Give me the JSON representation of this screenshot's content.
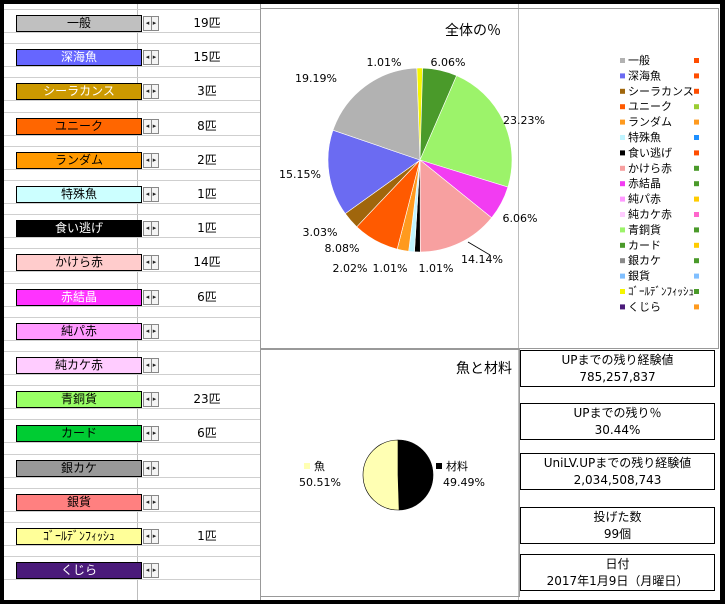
{
  "items": [
    {
      "name": "一般",
      "count": "19匹",
      "bg": "#c0c0c0",
      "fg": "#000000"
    },
    {
      "name": "深海魚",
      "count": "15匹",
      "bg": "#6666ff",
      "fg": "#ffffff"
    },
    {
      "name": "シーラカンス",
      "count": "3匹",
      "bg": "#cc9900",
      "fg": "#ffffff"
    },
    {
      "name": "ユニーク",
      "count": "8匹",
      "bg": "#ff6600",
      "fg": "#000000"
    },
    {
      "name": "ランダム",
      "count": "2匹",
      "bg": "#ff9900",
      "fg": "#000000"
    },
    {
      "name": "特殊魚",
      "count": "1匹",
      "bg": "#ccffff",
      "fg": "#000000"
    },
    {
      "name": "食い逃げ",
      "count": "1匹",
      "bg": "#000000",
      "fg": "#ffffff"
    },
    {
      "name": "かけら赤",
      "count": "14匹",
      "bg": "#ffcccc",
      "fg": "#000000"
    },
    {
      "name": "赤結晶",
      "count": "6匹",
      "bg": "#ff33ff",
      "fg": "#ffffff"
    },
    {
      "name": "純パ赤",
      "count": "",
      "bg": "#ff99ff",
      "fg": "#000000"
    },
    {
      "name": "純カケ赤",
      "count": "",
      "bg": "#ffccff",
      "fg": "#000000"
    },
    {
      "name": "青銅貨",
      "count": "23匹",
      "bg": "#99ff66",
      "fg": "#000000"
    },
    {
      "name": "カード",
      "count": "6匹",
      "bg": "#00cc33",
      "fg": "#000000"
    },
    {
      "name": "銀カケ",
      "count": "",
      "bg": "#999999",
      "fg": "#000000"
    },
    {
      "name": "銀貨",
      "count": "",
      "bg": "#ff8080",
      "fg": "#000000"
    },
    {
      "name": "ｺﾞｰﾙﾃﾞﾝﾌｨｯｼｭ",
      "count": "1匹",
      "bg": "#ffff99",
      "fg": "#000000"
    },
    {
      "name": "くじら",
      "count": "",
      "bg": "#4a1a7a",
      "fg": "#ffffff"
    }
  ],
  "chart_data": [
    {
      "type": "pie",
      "title": "全体の％",
      "slices": [
        {
          "label": "一般",
          "value": 19.19,
          "pct": "19.19%",
          "color": "#b2b2b2"
        },
        {
          "label": "深海魚",
          "value": 15.15,
          "pct": "15.15%",
          "color": "#6b6bf2"
        },
        {
          "label": "シーラカンス",
          "value": 3.03,
          "pct": "3.03%",
          "color": "#a0660c"
        },
        {
          "label": "ユニーク",
          "value": 8.08,
          "pct": "8.08%",
          "color": "#ff5a00"
        },
        {
          "label": "ランダム",
          "value": 2.02,
          "pct": "2.02%",
          "color": "#ff9a1e"
        },
        {
          "label": "特殊魚",
          "value": 1.01,
          "pct": "1.01%",
          "color": "#bff4ff"
        },
        {
          "label": "食い逃げ",
          "value": 1.01,
          "pct": "1.01%",
          "color": "#000000"
        },
        {
          "label": "かけら赤",
          "value": 14.14,
          "pct": "14.14%",
          "color": "#f7a0a0"
        },
        {
          "label": "赤結晶",
          "value": 6.06,
          "pct": "6.06%",
          "color": "#f23cf2"
        },
        {
          "label": "純パ赤",
          "value": 0,
          "pct": "",
          "color": "#ff99ff"
        },
        {
          "label": "純カケ赤",
          "value": 0,
          "pct": "",
          "color": "#ffccff"
        },
        {
          "label": "青銅貨",
          "value": 23.23,
          "pct": "23.23%",
          "color": "#9cf36a"
        },
        {
          "label": "カード",
          "value": 6.06,
          "pct": "6.06%",
          "color": "#4a9a2a"
        },
        {
          "label": "銀カケ",
          "value": 0,
          "pct": "",
          "color": "#8a8a8a"
        },
        {
          "label": "銀貨",
          "value": 0,
          "pct": "",
          "color": "#80bfff"
        },
        {
          "label": "ｺﾞｰﾙﾃﾞﾝﾌｨｯｼｭ",
          "value": 1.01,
          "pct": "1.01%",
          "color": "#f5f500"
        },
        {
          "label": "くじら",
          "value": 0,
          "pct": "",
          "color": "#4a1a7a"
        }
      ],
      "legend_markers": [
        "#ff4d00",
        "#ff4d00",
        "#ff4d00",
        "#9acd32",
        "#ff9a1e",
        "#1e90ff",
        "#ff4d00",
        "#4a9a2a",
        "#4a9a2a",
        "#ffcc00",
        "#ff66cc",
        "#4a9a2a",
        "#ffcc00",
        "#4a9a2a",
        "#80bfff",
        "#4a9a2a",
        "#ff9a1e"
      ],
      "legend_placement": "right"
    },
    {
      "type": "pie",
      "title": "魚と材料",
      "slices": [
        {
          "label": "魚",
          "value": 50.51,
          "pct": "50.51%",
          "color": "#ffffb3"
        },
        {
          "label": "材料",
          "value": 49.49,
          "pct": "49.49%",
          "color": "#000000"
        }
      ],
      "legend_placement": "inline"
    }
  ],
  "stats": [
    {
      "label": "UPまでの残り経験値",
      "value": "785,257,837"
    },
    {
      "label": "UPまでの残り％",
      "value": "30.44%"
    },
    {
      "label": "UniLV.UPまでの残り経験値",
      "value": "2,034,508,743"
    },
    {
      "label": "投げた数",
      "value": "99個"
    },
    {
      "label": "日付",
      "value": "2017年1月9日（月曜日）"
    }
  ]
}
